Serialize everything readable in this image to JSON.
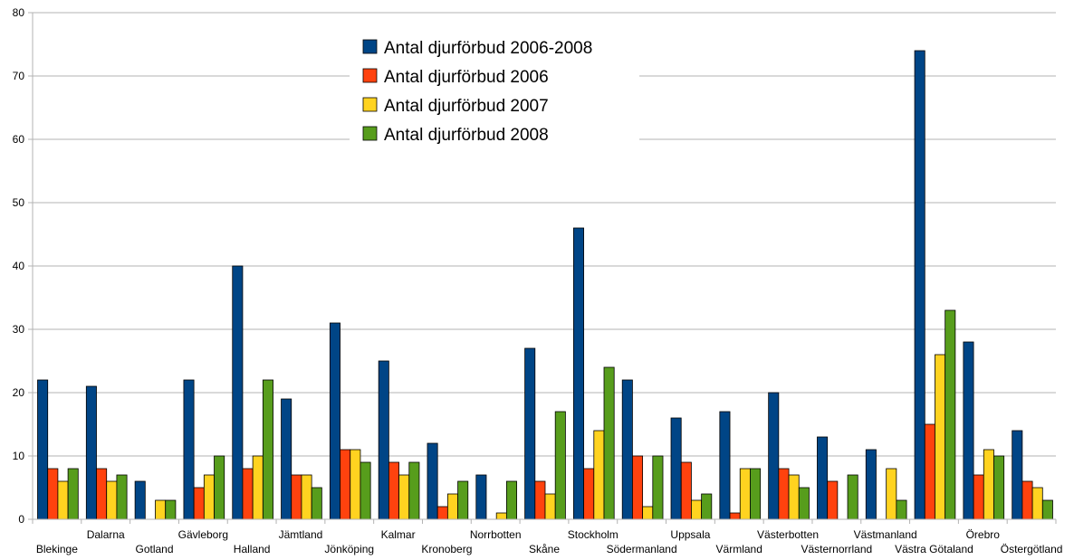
{
  "chart_data": {
    "type": "bar",
    "title": "",
    "xlabel": "",
    "ylabel": "",
    "ylim": [
      0,
      80
    ],
    "yticks": [
      0,
      10,
      20,
      30,
      40,
      50,
      60,
      70,
      80
    ],
    "grid": true,
    "legend_position": "top-center",
    "categories": [
      "Blekinge",
      "Dalarna",
      "Gotland",
      "Gävleborg",
      "Halland",
      "Jämtland",
      "Jönköping",
      "Kalmar",
      "Kronoberg",
      "Norrbotten",
      "Skåne",
      "Stockholm",
      "Södermanland",
      "Uppsala",
      "Värmland",
      "Västerbotten",
      "Västernorrland",
      "Västmanland",
      "Västra Götaland",
      "Örebro",
      "Östergötland"
    ],
    "series": [
      {
        "name": "Antal djurförbud 2006-2008",
        "color": "#004586",
        "values": [
          22,
          21,
          6,
          22,
          40,
          19,
          31,
          25,
          12,
          7,
          27,
          46,
          22,
          16,
          17,
          20,
          13,
          11,
          74,
          28,
          14
        ]
      },
      {
        "name": "Antal djurförbud 2006",
        "color": "#ff420e",
        "values": [
          8,
          8,
          0,
          5,
          8,
          7,
          11,
          9,
          2,
          0,
          6,
          8,
          10,
          9,
          1,
          8,
          6,
          0,
          15,
          7,
          6
        ]
      },
      {
        "name": "Antal djurförbud 2007",
        "color": "#ffd320",
        "values": [
          6,
          6,
          3,
          7,
          10,
          7,
          11,
          7,
          4,
          1,
          4,
          14,
          2,
          3,
          8,
          7,
          0,
          8,
          26,
          11,
          5
        ]
      },
      {
        "name": "Antal djurförbud 2008",
        "color": "#579d1c",
        "values": [
          8,
          7,
          3,
          10,
          22,
          5,
          9,
          9,
          6,
          6,
          17,
          24,
          10,
          4,
          8,
          5,
          7,
          3,
          33,
          10,
          3
        ]
      }
    ]
  }
}
